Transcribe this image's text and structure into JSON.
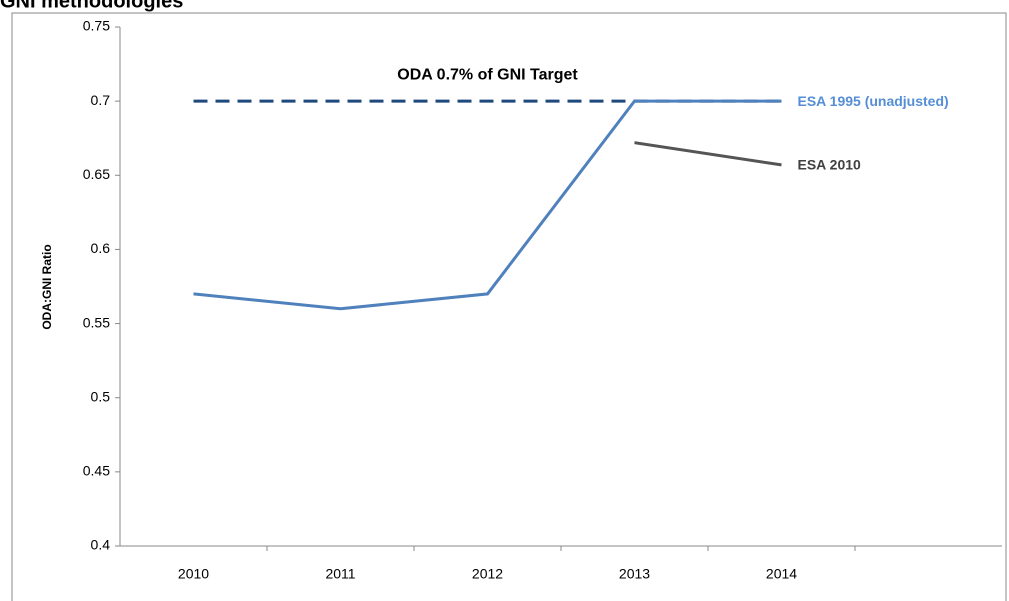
{
  "chart_data": {
    "type": "line",
    "title": "GNI methodologies",
    "ylabel": "ODA:GNI Ratio",
    "categories": [
      "2010",
      "2011",
      "2012",
      "2013",
      "2014"
    ],
    "series": [
      {
        "name": "ODA 0.7% of GNI Target",
        "color": "#1f497d",
        "dashed": true,
        "values": [
          0.7,
          0.7,
          0.7,
          0.7,
          0.7
        ]
      },
      {
        "name": "ESA 1995 (unadjusted)",
        "color": "#4f81bd",
        "label_color": "#558ed5",
        "values": [
          0.57,
          0.56,
          0.57,
          0.7,
          0.7
        ]
      },
      {
        "name": "ESA 2010",
        "color": "#555555",
        "label_color": "#404040",
        "values": [
          null,
          null,
          null,
          0.672,
          0.657
        ]
      }
    ],
    "ylim": [
      0.4,
      0.75
    ],
    "yticks": [
      0.4,
      0.45,
      0.5,
      0.55,
      0.6,
      0.65,
      0.7,
      0.75
    ],
    "grid": false
  }
}
